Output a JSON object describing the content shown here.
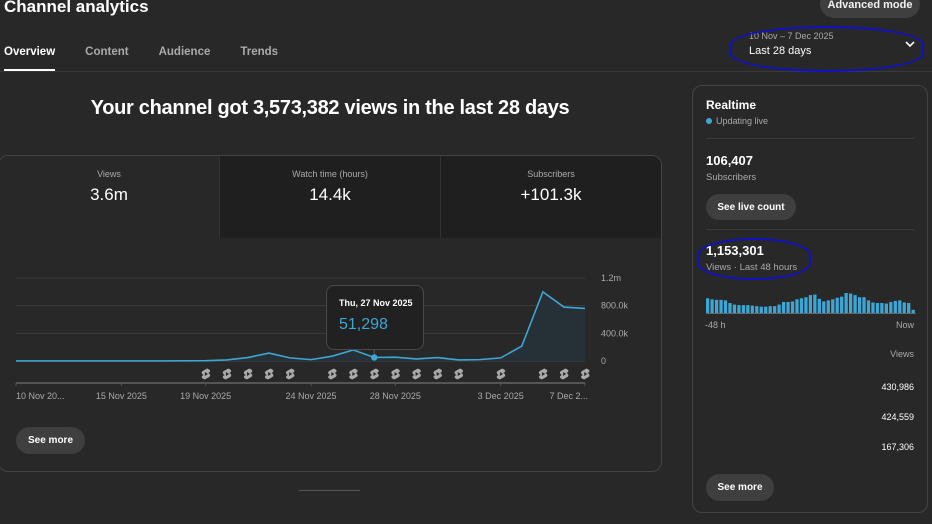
{
  "header": {
    "title": "Channel analytics",
    "advanced_mode_label": "Advanced mode"
  },
  "tabs": [
    {
      "label": "Overview",
      "active": true
    },
    {
      "label": "Content",
      "active": false
    },
    {
      "label": "Audience",
      "active": false
    },
    {
      "label": "Trends",
      "active": false
    }
  ],
  "date_picker": {
    "range": "10 Nov – 7 Dec 2025",
    "label": "Last 28 days",
    "icon": "chevron-down-icon"
  },
  "headline": "Your channel got 3,573,382 views in the last 28 days",
  "metrics": [
    {
      "label": "Views",
      "value": "3.6m",
      "selected": true
    },
    {
      "label": "Watch time (hours)",
      "value": "14.4k",
      "selected": false
    },
    {
      "label": "Subscribers",
      "value": "+101.3k",
      "selected": false
    }
  ],
  "tooltip": {
    "date": "Thu, 27 Nov 2025",
    "value": "51,298"
  },
  "see_more_label": "See more",
  "colors": {
    "accent": "#3ea6d4",
    "background": "#282828",
    "annotation": "#1010c8"
  },
  "chart_data": {
    "type": "area",
    "title": "",
    "xlabel": "",
    "ylabel": "Views",
    "x": [
      "10 Nov",
      "11 Nov",
      "12 Nov",
      "13 Nov",
      "14 Nov",
      "15 Nov",
      "16 Nov",
      "17 Nov",
      "18 Nov",
      "19 Nov",
      "20 Nov",
      "21 Nov",
      "22 Nov",
      "23 Nov",
      "24 Nov",
      "25 Nov",
      "26 Nov",
      "27 Nov",
      "28 Nov",
      "29 Nov",
      "30 Nov",
      "1 Dec",
      "2 Dec",
      "3 Dec",
      "4 Dec",
      "5 Dec",
      "6 Dec",
      "7 Dec"
    ],
    "values": [
      1000,
      1000,
      1000,
      1000,
      1000,
      1000,
      1000,
      1000,
      2000,
      5000,
      15000,
      50000,
      115000,
      45000,
      20000,
      70000,
      160000,
      51298,
      55000,
      30000,
      50000,
      15000,
      20000,
      45000,
      215000,
      1000000,
      780000,
      760000
    ],
    "x_tick_labels": [
      "10 Nov 20...",
      "15 Nov 2025",
      "19 Nov 2025",
      "24 Nov 2025",
      "28 Nov 2025",
      "3 Dec 2025",
      "7 Dec 2..."
    ],
    "x_tick_indices": [
      0,
      5,
      9,
      14,
      18,
      23,
      27
    ],
    "y_tick_labels": [
      "0",
      "400.0k",
      "800.0k",
      "1.2m"
    ],
    "y_ticks": [
      0,
      400000,
      800000,
      1200000
    ],
    "ylim": [
      0,
      1200000
    ],
    "grid": true,
    "highlight_index": 17,
    "shorts_marker_indices": [
      9,
      10,
      11,
      12,
      13,
      15,
      16,
      17,
      18,
      19,
      20,
      21,
      23,
      25,
      26,
      27
    ],
    "shorts_marker_icon": "shorts-icon"
  },
  "realtime": {
    "title": "Realtime",
    "status": "Updating live",
    "subscribers_value": "106,407",
    "subscribers_label": "Subscribers",
    "live_count_button": "See live count",
    "views_value": "1,153,301",
    "views_label": "Views · Last 48 hours",
    "axis_start": "-48 h",
    "axis_end": "Now",
    "column_header": "Views",
    "rows": [
      "430,986",
      "424,559",
      "167,306"
    ],
    "see_more_label": "See more",
    "bars": [
      28,
      26,
      25,
      25,
      24,
      19,
      16,
      15,
      15,
      15,
      14,
      13,
      12,
      12,
      13,
      13,
      16,
      21,
      21,
      22,
      26,
      28,
      30,
      34,
      35,
      27,
      22,
      24,
      26,
      29,
      31,
      38,
      37,
      34,
      30,
      30,
      24,
      20,
      19,
      19,
      18,
      21,
      23,
      24,
      20,
      19,
      6
    ]
  }
}
